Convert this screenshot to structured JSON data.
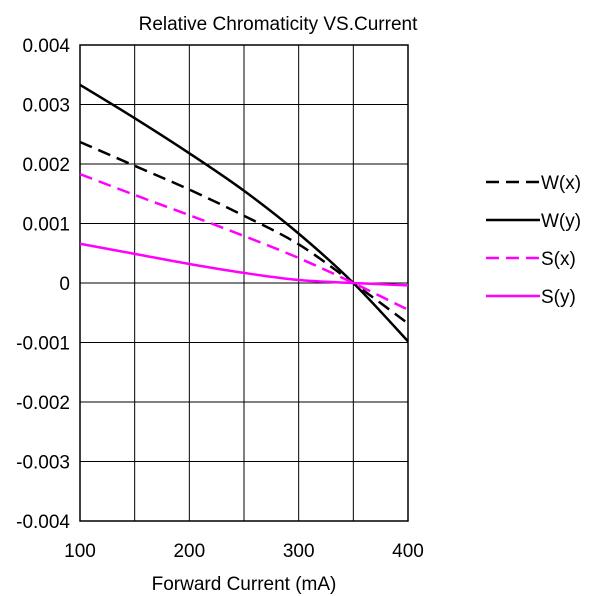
{
  "chart_data": {
    "type": "line",
    "title": "Relative Chromaticity VS.Current",
    "xlabel": "Forward Current (mA)",
    "ylabel": "",
    "xlim": [
      100,
      400
    ],
    "ylim": [
      -0.004,
      0.004
    ],
    "grid": true,
    "legend_position": "right",
    "x_ticks": [
      "100",
      "200",
      "300",
      "400"
    ],
    "y_ticks": [
      "0.004",
      "0.003",
      "0.002",
      "0.001",
      "0",
      "-0.001",
      "-0.002",
      "-0.003",
      "-0.004"
    ],
    "x": [
      100,
      150,
      200,
      250,
      300,
      350,
      400
    ],
    "series": [
      {
        "name": "W(x)",
        "color": "#000000",
        "dash": "dashed",
        "values": [
          0.00237,
          0.00197,
          0.00157,
          0.00113,
          0.00065,
          0.0,
          -0.00068
        ]
      },
      {
        "name": "W(y)",
        "color": "#000000",
        "dash": "solid",
        "values": [
          0.00333,
          0.00277,
          0.00218,
          0.00155,
          0.00083,
          0.0,
          -0.00098
        ]
      },
      {
        "name": "S(x)",
        "color": "#ff00ff",
        "dash": "dashed",
        "values": [
          0.00183,
          0.00148,
          0.00114,
          0.00079,
          0.00042,
          0.0,
          -0.00045
        ]
      },
      {
        "name": "S(y)",
        "color": "#ff00ff",
        "dash": "solid",
        "values": [
          0.00066,
          0.00049,
          0.00032,
          0.00017,
          5e-05,
          0.0,
          -4e-05
        ]
      }
    ]
  }
}
